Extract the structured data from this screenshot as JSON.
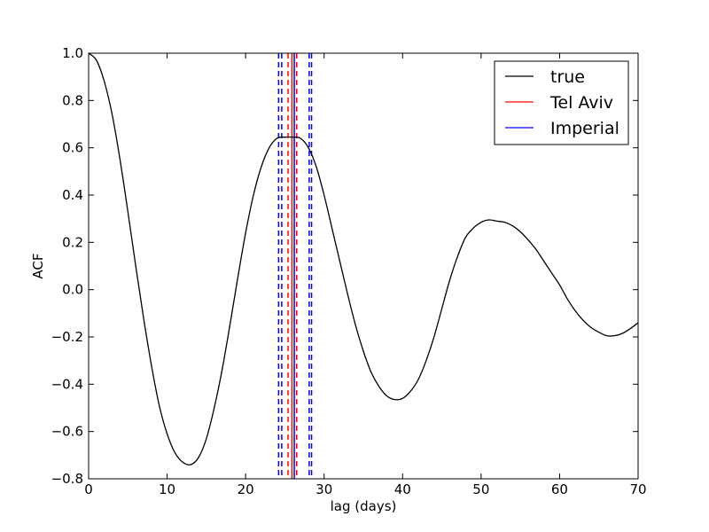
{
  "chart_data": {
    "type": "line",
    "xlabel": "lag (days)",
    "ylabel": "ACF",
    "xlim": [
      0,
      70
    ],
    "ylim": [
      -0.8,
      1.0
    ],
    "xticks": [
      0,
      10,
      20,
      30,
      40,
      50,
      60,
      70
    ],
    "yticks": [
      -0.8,
      -0.6,
      -0.4,
      -0.2,
      0.0,
      0.2,
      0.4,
      0.6,
      0.8,
      1.0
    ],
    "xtick_labels": [
      "0",
      "10",
      "20",
      "30",
      "40",
      "50",
      "60",
      "70"
    ],
    "ytick_labels": [
      "−0.8",
      "−0.6",
      "−0.4",
      "−0.2",
      "0.0",
      "0.2",
      "0.4",
      "0.6",
      "0.8",
      "1.0"
    ],
    "grid": false,
    "legend_position": "top-right",
    "series": [
      {
        "name": "true",
        "color": "#000000",
        "x": [
          0,
          1,
          2,
          3,
          4,
          5,
          6,
          7,
          8,
          9,
          10,
          11,
          12,
          13,
          14,
          15,
          16,
          17,
          18,
          19,
          20,
          21,
          22,
          23,
          24,
          25,
          26,
          27,
          28,
          29,
          30,
          31,
          32,
          33,
          34,
          35,
          36,
          37,
          38,
          39,
          40,
          41,
          42,
          43,
          44,
          45,
          46,
          47,
          48,
          49,
          50,
          51,
          52,
          53,
          54,
          55,
          56,
          57,
          58,
          59,
          60,
          61,
          62,
          63,
          64,
          65,
          66,
          67,
          68,
          69,
          70
        ],
        "y": [
          1.0,
          0.97,
          0.88,
          0.74,
          0.55,
          0.33,
          0.1,
          -0.12,
          -0.32,
          -0.49,
          -0.61,
          -0.69,
          -0.73,
          -0.74,
          -0.71,
          -0.63,
          -0.5,
          -0.34,
          -0.15,
          0.05,
          0.24,
          0.4,
          0.52,
          0.6,
          0.64,
          0.645,
          0.645,
          0.64,
          0.6,
          0.52,
          0.4,
          0.26,
          0.12,
          -0.02,
          -0.15,
          -0.26,
          -0.35,
          -0.41,
          -0.45,
          -0.465,
          -0.46,
          -0.43,
          -0.38,
          -0.3,
          -0.2,
          -0.08,
          0.04,
          0.14,
          0.22,
          0.26,
          0.285,
          0.295,
          0.29,
          0.285,
          0.27,
          0.245,
          0.21,
          0.17,
          0.12,
          0.07,
          0.02,
          -0.04,
          -0.09,
          -0.13,
          -0.16,
          -0.18,
          -0.195,
          -0.195,
          -0.185,
          -0.165,
          -0.14
        ]
      }
    ],
    "vertical_lines": [
      {
        "series": "Tel Aviv",
        "color": "#ff0000",
        "x": 25.9,
        "style": "solid"
      },
      {
        "series": "Tel Aviv",
        "color": "#ff0000",
        "x": 25.4,
        "style": "dashed"
      },
      {
        "series": "Tel Aviv",
        "color": "#ff0000",
        "x": 26.5,
        "style": "dashed"
      },
      {
        "series": "Imperial",
        "color": "#0000ff",
        "x": 26.2,
        "style": "solid"
      },
      {
        "series": "Imperial",
        "color": "#0000ff",
        "x": 24.2,
        "style": "dashed"
      },
      {
        "series": "Imperial",
        "color": "#0000ff",
        "x": 24.6,
        "style": "dashed"
      },
      {
        "series": "Imperial",
        "color": "#0000ff",
        "x": 28.1,
        "style": "dashed"
      },
      {
        "series": "Imperial",
        "color": "#0000ff",
        "x": 28.4,
        "style": "dashed"
      }
    ],
    "legend": [
      {
        "label": "true",
        "color": "#000000"
      },
      {
        "label": "Tel Aviv",
        "color": "#ff0000"
      },
      {
        "label": "Imperial",
        "color": "#0000ff"
      }
    ]
  }
}
